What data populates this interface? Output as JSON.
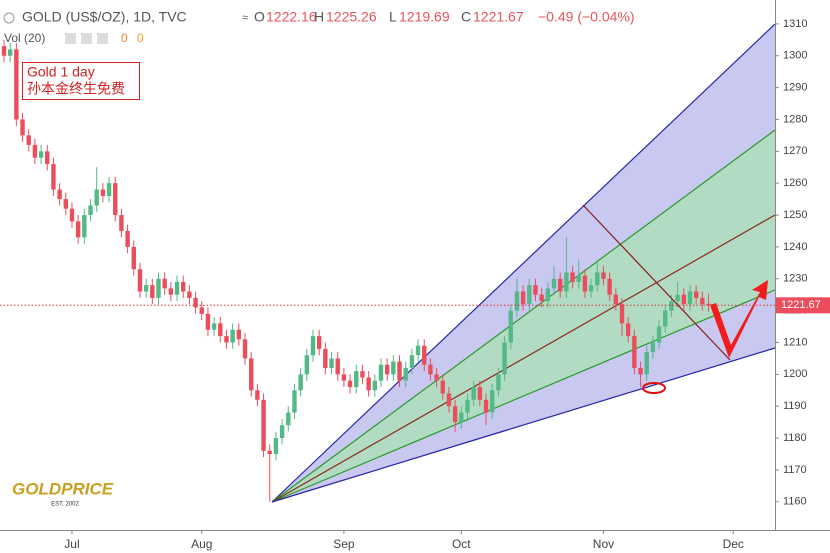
{
  "chart_data": {
    "type": "candlestick",
    "title": "GOLD (US$/OZ), 1D, TVC",
    "categories": [
      null,
      null,
      null,
      null,
      null,
      null,
      null,
      null,
      null,
      null,
      null,
      "Jul",
      null,
      null,
      null,
      null,
      null,
      null,
      null,
      null,
      null,
      null,
      null,
      null,
      null,
      null,
      null,
      null,
      null,
      null,
      null,
      null,
      "Aug",
      null,
      null,
      null,
      null,
      null,
      null,
      null,
      null,
      null,
      null,
      null,
      null,
      null,
      null,
      null,
      null,
      null,
      null,
      null,
      null,
      null,
      null,
      "Sep",
      null,
      null,
      null,
      null,
      null,
      null,
      null,
      null,
      null,
      null,
      null,
      null,
      null,
      null,
      null,
      null,
      null,
      null,
      "Oct",
      null,
      null,
      null,
      null,
      null,
      null,
      null,
      null,
      null,
      null,
      null,
      null,
      null,
      null,
      null,
      null,
      null,
      null,
      null,
      null,
      null,
      null,
      "Nov",
      null,
      null,
      null,
      null,
      null,
      null,
      null,
      null,
      null,
      null,
      null,
      null,
      null,
      null,
      null,
      null,
      null,
      null,
      null,
      null,
      "Dec"
    ],
    "open": [
      1303,
      1300,
      1302,
      1280,
      1275,
      1272,
      1268,
      1270,
      1266,
      1258,
      1255,
      1252,
      1248,
      1243,
      1250,
      1253,
      1258,
      1256,
      1260,
      1250,
      1245,
      1240,
      1233,
      1226,
      1228,
      1224,
      1230,
      1227,
      1225,
      1229,
      1226,
      1224,
      1221,
      1219,
      1214,
      1216,
      1212,
      1210,
      1214,
      1211,
      1205,
      1195,
      1192,
      1176,
      1175,
      1180,
      1184,
      1188,
      1195,
      1200,
      1206,
      1212,
      1208,
      1202,
      1205,
      1200,
      1198,
      1196,
      1201,
      1199,
      1195,
      1198,
      1203,
      1200,
      1204,
      1198,
      1202,
      1206,
      1209,
      1203,
      1200,
      1198,
      1194,
      1190,
      1185,
      1188,
      1192,
      1196,
      1192,
      1188,
      1195,
      1200,
      1210,
      1220,
      1226,
      1222,
      1228,
      1225,
      1223,
      1227,
      1230,
      1226,
      1232,
      1229,
      1231,
      1226,
      1228,
      1232,
      1230,
      1225,
      1222,
      1216,
      1212,
      1202,
      1200,
      1207,
      1210,
      1215,
      1220,
      1223,
      1225,
      1222,
      1226,
      1224,
      1222.16,
      null,
      null,
      null,
      null
    ],
    "high": [
      1305,
      1304,
      1304,
      1282,
      1277,
      1274,
      1272,
      1272,
      1268,
      1260,
      1257,
      1254,
      1250,
      1252,
      1255,
      1265,
      1260,
      1262,
      1262,
      1252,
      1247,
      1242,
      1235,
      1230,
      1230,
      1232,
      1232,
      1229,
      1231,
      1231,
      1228,
      1226,
      1223,
      1221,
      1218,
      1218,
      1214,
      1216,
      1216,
      1213,
      1207,
      1197,
      1194,
      1178,
      1182,
      1186,
      1190,
      1197,
      1202,
      1208,
      1214,
      1214,
      1210,
      1207,
      1207,
      1202,
      1200,
      1203,
      1203,
      1201,
      1200,
      1205,
      1205,
      1206,
      1206,
      1204,
      1208,
      1211,
      1211,
      1205,
      1202,
      1200,
      1196,
      1192,
      1190,
      1194,
      1198,
      1198,
      1194,
      1197,
      1202,
      1212,
      1222,
      1230,
      1228,
      1230,
      1230,
      1227,
      1229,
      1234,
      1232,
      1243,
      1234,
      1236,
      1233,
      1230,
      1236,
      1234,
      1232,
      1227,
      1224,
      1218,
      1214,
      1204,
      1209,
      1212,
      1217,
      1222,
      1225,
      1229,
      1227,
      1228,
      1228,
      1226,
      1225.26,
      null,
      null,
      null,
      null
    ],
    "low": [
      1298,
      1298,
      1278,
      1273,
      1270,
      1266,
      1266,
      1264,
      1256,
      1253,
      1250,
      1246,
      1241,
      1241,
      1248,
      1251,
      1254,
      1254,
      1248,
      1243,
      1238,
      1231,
      1224,
      1224,
      1222,
      1222,
      1225,
      1223,
      1223,
      1224,
      1222,
      1219,
      1217,
      1212,
      1212,
      1210,
      1208,
      1208,
      1209,
      1203,
      1193,
      1190,
      1174,
      1160,
      1173,
      1178,
      1182,
      1186,
      1193,
      1198,
      1204,
      1206,
      1200,
      1200,
      1198,
      1196,
      1194,
      1194,
      1197,
      1193,
      1193,
      1196,
      1198,
      1198,
      1196,
      1196,
      1200,
      1204,
      1201,
      1198,
      1196,
      1192,
      1188,
      1182,
      1183,
      1186,
      1190,
      1190,
      1184,
      1186,
      1193,
      1198,
      1208,
      1218,
      1220,
      1220,
      1223,
      1221,
      1221,
      1225,
      1224,
      1224,
      1227,
      1227,
      1224,
      1224,
      1226,
      1228,
      1223,
      1220,
      1212,
      1210,
      1200,
      1196,
      1198,
      1205,
      1208,
      1213,
      1218,
      1221,
      1220,
      1220,
      1222,
      1220,
      1219.69,
      null,
      null,
      null,
      null
    ],
    "close": [
      1300,
      1302,
      1280,
      1275,
      1272,
      1268,
      1270,
      1266,
      1258,
      1255,
      1252,
      1248,
      1243,
      1250,
      1253,
      1258,
      1256,
      1260,
      1250,
      1245,
      1240,
      1233,
      1226,
      1228,
      1224,
      1230,
      1227,
      1225,
      1229,
      1226,
      1224,
      1221,
      1219,
      1214,
      1216,
      1212,
      1210,
      1214,
      1211,
      1205,
      1195,
      1192,
      1176,
      1175,
      1180,
      1184,
      1188,
      1195,
      1200,
      1206,
      1212,
      1208,
      1202,
      1205,
      1200,
      1198,
      1196,
      1201,
      1199,
      1195,
      1198,
      1203,
      1200,
      1204,
      1198,
      1202,
      1206,
      1209,
      1203,
      1200,
      1198,
      1194,
      1190,
      1185,
      1188,
      1192,
      1196,
      1192,
      1188,
      1195,
      1200,
      1210,
      1220,
      1226,
      1222,
      1228,
      1225,
      1223,
      1227,
      1230,
      1226,
      1232,
      1229,
      1231,
      1226,
      1228,
      1232,
      1230,
      1225,
      1222,
      1216,
      1212,
      1202,
      1200,
      1207,
      1210,
      1215,
      1220,
      1223,
      1225,
      1222,
      1226,
      1224,
      1222,
      1221.67,
      null,
      null,
      null,
      null
    ],
    "up_color": "#53b987",
    "down_color": "#eb4d5c",
    "ylim": [
      1148,
      1317.5
    ],
    "yticks": [
      1160,
      1170,
      1180,
      1190,
      1200,
      1210,
      1220,
      1230,
      1240,
      1250,
      1260,
      1270,
      1280,
      1290,
      1300,
      1310
    ],
    "change": "−0.49 (−0.04%)",
    "ohlc_letters": [
      "O",
      "H",
      "L",
      "C"
    ],
    "volume_label": "Vol (20)",
    "volume_values": [
      0,
      0
    ],
    "annotation": [
      "Gold 1 day",
      "孙本金终生免费"
    ],
    "logo": "GOLDPRICE",
    "logo_sub": "EST. 2002"
  }
}
